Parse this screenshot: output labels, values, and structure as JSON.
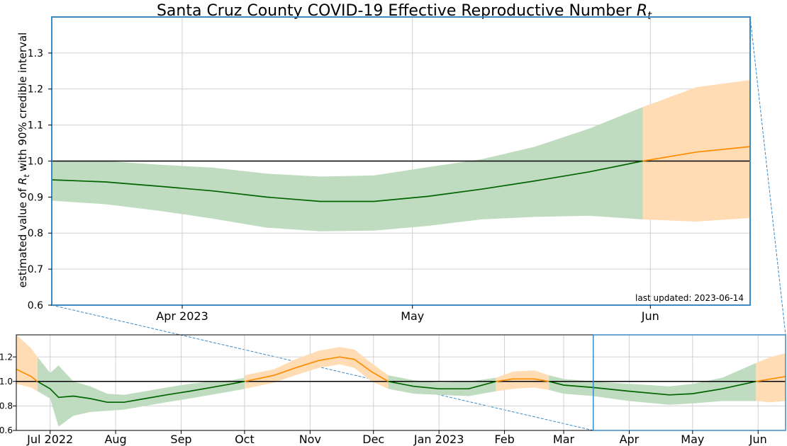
{
  "chart_data": [
    {
      "type": "area",
      "title": "Santa Cruz County COVID-19 Effective Reproductive Number",
      "title_symbol": "R",
      "title_subscript": "t",
      "ylabel_prefix": "estimated value of",
      "ylabel_symbol": "R",
      "ylabel_subscript": "t",
      "ylabel_suffix": "with 90% credible interval",
      "annotation": "last updated: 2023-06-14",
      "ylim": [
        0.6,
        1.4
      ],
      "xlim": [
        "2023-03-15",
        "2023-06-14"
      ],
      "yticks": [
        "0.6",
        "0.7",
        "0.8",
        "0.9",
        "1.0",
        "1.1",
        "1.2",
        "1.3"
      ],
      "xticks": [
        {
          "date": "2023-04-01",
          "label": "Apr 2023"
        },
        {
          "date": "2023-05-01",
          "label": "May"
        },
        {
          "date": "2023-06-01",
          "label": "Jun"
        }
      ],
      "reference_line": 1.0,
      "grid": true,
      "colors": {
        "estimate": "#006400",
        "estimate_band": "#c0dcc0",
        "projection": "#ff8c00",
        "projection_band": "#ffdcb4",
        "reference": "#000000",
        "frame": "#3a8ac4"
      },
      "series": [
        {
          "segment": "estimate",
          "x": [
            "2023-03-15",
            "2023-03-22",
            "2023-03-29",
            "2023-04-05",
            "2023-04-12",
            "2023-04-19",
            "2023-04-26",
            "2023-05-03",
            "2023-05-10",
            "2023-05-17",
            "2023-05-24",
            "2023-05-31"
          ],
          "values": [
            0.948,
            0.942,
            0.93,
            0.917,
            0.9,
            0.888,
            0.888,
            0.902,
            0.922,
            0.945,
            0.97,
            1.0
          ],
          "lower": [
            0.89,
            0.88,
            0.862,
            0.84,
            0.815,
            0.805,
            0.807,
            0.82,
            0.838,
            0.845,
            0.848,
            0.838
          ],
          "upper": [
            1.0,
            1.0,
            0.99,
            0.982,
            0.965,
            0.957,
            0.96,
            0.983,
            1.005,
            1.04,
            1.09,
            1.15
          ]
        },
        {
          "segment": "projection",
          "x": [
            "2023-05-31",
            "2023-06-07",
            "2023-06-14"
          ],
          "values": [
            1.0,
            1.025,
            1.04
          ],
          "lower": [
            0.838,
            0.832,
            0.842
          ],
          "upper": [
            1.15,
            1.205,
            1.225
          ]
        }
      ]
    },
    {
      "type": "area",
      "ylim": [
        0.6,
        1.38
      ],
      "xlim": [
        "2022-06-15",
        "2023-06-14"
      ],
      "yticks": [
        "0.6",
        "0.8",
        "1.0",
        "1.2"
      ],
      "xticks": [
        {
          "date": "2022-07-01",
          "label": "Jul 2022"
        },
        {
          "date": "2022-08-01",
          "label": "Aug"
        },
        {
          "date": "2022-09-01",
          "label": "Sep"
        },
        {
          "date": "2022-10-01",
          "label": "Oct"
        },
        {
          "date": "2022-11-01",
          "label": "Nov"
        },
        {
          "date": "2022-12-01",
          "label": "Dec"
        },
        {
          "date": "2023-01-01",
          "label": "Jan 2023"
        },
        {
          "date": "2023-02-01",
          "label": "Feb"
        },
        {
          "date": "2023-03-01",
          "label": "Mar"
        },
        {
          "date": "2023-04-01",
          "label": "Apr"
        },
        {
          "date": "2023-05-01",
          "label": "May"
        },
        {
          "date": "2023-06-01",
          "label": "Jun"
        }
      ],
      "reference_line": 1.0,
      "grid": true,
      "zoom_window": [
        "2023-03-15",
        "2023-06-14"
      ],
      "series": [
        {
          "segment": "projection",
          "x": [
            "2022-06-15",
            "2022-06-22",
            "2022-06-25"
          ],
          "values": [
            1.1,
            1.04,
            1.0
          ],
          "lower": [
            0.98,
            0.95,
            0.92
          ],
          "upper": [
            1.38,
            1.27,
            1.2
          ]
        },
        {
          "segment": "estimate",
          "x": [
            "2022-06-25",
            "2022-07-01",
            "2022-07-05",
            "2022-07-12",
            "2022-07-20",
            "2022-07-28",
            "2022-08-05",
            "2022-08-15",
            "2022-08-25",
            "2022-09-05",
            "2022-09-15",
            "2022-09-25",
            "2022-10-01"
          ],
          "values": [
            1.0,
            0.94,
            0.87,
            0.88,
            0.86,
            0.83,
            0.83,
            0.86,
            0.89,
            0.92,
            0.95,
            0.98,
            1.0
          ],
          "lower": [
            0.92,
            0.86,
            0.63,
            0.72,
            0.75,
            0.76,
            0.77,
            0.8,
            0.83,
            0.86,
            0.89,
            0.92,
            0.94
          ],
          "upper": [
            1.2,
            1.07,
            1.13,
            1.0,
            0.96,
            0.9,
            0.89,
            0.92,
            0.95,
            0.98,
            1.0,
            1.01,
            1.03
          ]
        },
        {
          "segment": "projection",
          "x": [
            "2022-10-01",
            "2022-10-15",
            "2022-10-25",
            "2022-11-05",
            "2022-11-15",
            "2022-11-22",
            "2022-11-30",
            "2022-12-08"
          ],
          "values": [
            1.0,
            1.05,
            1.11,
            1.17,
            1.2,
            1.18,
            1.08,
            1.0
          ],
          "lower": [
            0.94,
            0.99,
            1.05,
            1.11,
            1.14,
            1.11,
            1.0,
            0.94
          ],
          "upper": [
            1.05,
            1.1,
            1.18,
            1.25,
            1.28,
            1.26,
            1.15,
            1.05
          ]
        },
        {
          "segment": "estimate",
          "x": [
            "2022-12-08",
            "2022-12-20",
            "2023-01-01",
            "2023-01-15",
            "2023-01-28"
          ],
          "values": [
            1.0,
            0.96,
            0.94,
            0.94,
            1.0
          ],
          "lower": [
            0.94,
            0.9,
            0.89,
            0.88,
            0.92
          ],
          "upper": [
            1.05,
            1.01,
            0.99,
            1.0,
            1.03
          ]
        },
        {
          "segment": "projection",
          "x": [
            "2023-01-28",
            "2023-02-05",
            "2023-02-15",
            "2023-02-22"
          ],
          "values": [
            1.0,
            1.02,
            1.02,
            1.0
          ],
          "lower": [
            0.92,
            0.94,
            0.95,
            0.93
          ],
          "upper": [
            1.03,
            1.08,
            1.09,
            1.05
          ]
        },
        {
          "segment": "estimate",
          "x": [
            "2023-02-22",
            "2023-03-01",
            "2023-03-15",
            "2023-04-01",
            "2023-04-20",
            "2023-05-01",
            "2023-05-15",
            "2023-05-31"
          ],
          "values": [
            1.0,
            0.97,
            0.95,
            0.92,
            0.89,
            0.9,
            0.94,
            1.0
          ],
          "lower": [
            0.93,
            0.9,
            0.88,
            0.84,
            0.81,
            0.82,
            0.84,
            0.84
          ],
          "upper": [
            1.05,
            1.02,
            1.0,
            0.98,
            0.96,
            0.98,
            1.03,
            1.15
          ]
        },
        {
          "segment": "projection",
          "x": [
            "2023-05-31",
            "2023-06-07",
            "2023-06-14"
          ],
          "values": [
            1.0,
            1.02,
            1.04
          ],
          "lower": [
            0.84,
            0.83,
            0.84
          ],
          "upper": [
            1.15,
            1.2,
            1.23
          ]
        }
      ]
    }
  ]
}
